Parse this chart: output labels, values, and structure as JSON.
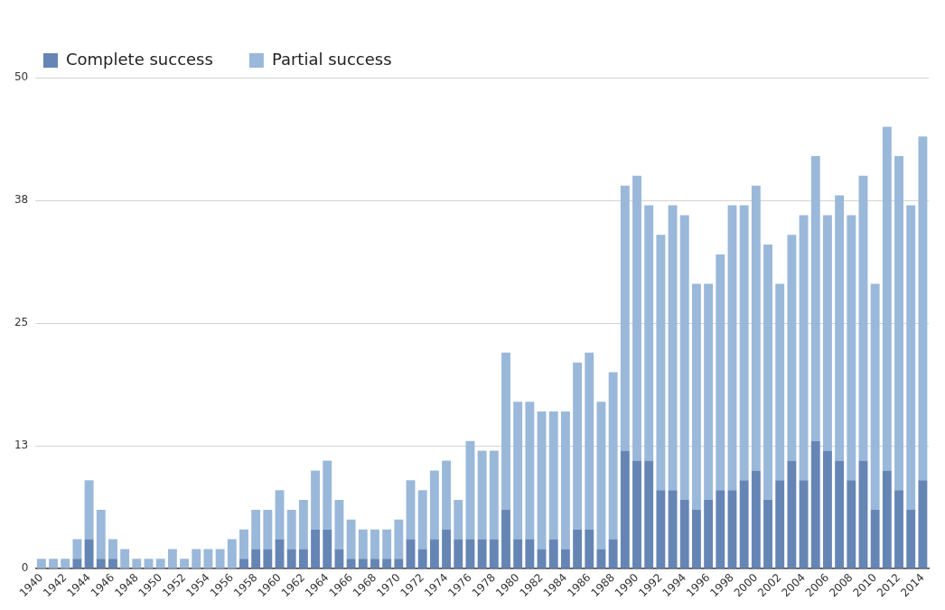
{
  "chart_data": {
    "type": "bar",
    "stacked": true,
    "grid": "y",
    "legend": "top left",
    "categories": [
      "1940",
      null,
      "1942",
      null,
      "1944",
      null,
      "1946",
      null,
      "1948",
      null,
      "1950",
      null,
      "1952",
      null,
      "1954",
      null,
      "1956",
      null,
      "1958",
      null,
      "1960",
      null,
      "1962",
      null,
      "1964",
      null,
      "1966",
      null,
      "1968",
      null,
      "1970",
      null,
      "1972",
      null,
      "1974",
      null,
      "1976",
      null,
      "1978",
      null,
      "1980",
      null,
      "1982",
      null,
      "1984",
      null,
      "1986",
      null,
      "1988",
      null,
      "1990",
      null,
      "1992",
      null,
      "1994",
      null,
      "1996",
      null,
      "1998",
      null,
      "2000",
      null,
      "2002",
      null,
      "2004",
      null,
      "2006",
      null,
      "2008",
      null,
      "2010",
      null,
      "2012",
      null,
      "2014"
    ],
    "ylim": [
      0,
      50
    ],
    "yticks": [
      0,
      {
        "value": 12.5,
        "label": "13"
      },
      25,
      {
        "value": 37.5,
        "label": "38"
      },
      50
    ],
    "series": [
      {
        "name": "Complete success",
        "color": "#6585b5",
        "values": [
          0,
          0,
          0,
          1,
          3,
          1,
          1,
          0,
          0,
          0,
          0,
          0,
          0,
          0,
          0,
          0,
          0,
          1,
          2,
          2,
          3,
          2,
          2,
          4,
          4,
          2,
          1,
          1,
          1,
          1,
          1,
          3,
          2,
          3,
          4,
          3,
          3,
          3,
          3,
          6,
          3,
          3,
          2,
          3,
          2,
          4,
          4,
          2,
          3,
          12,
          11,
          11,
          8,
          8,
          7,
          6,
          7,
          8,
          8,
          9,
          10,
          7,
          9,
          11,
          9,
          13,
          12,
          11,
          9,
          11,
          6,
          10,
          8,
          6,
          9
        ]
      },
      {
        "name": "Partial success",
        "color": "#9ab8d9",
        "values": [
          1,
          1,
          1,
          2,
          6,
          5,
          2,
          2,
          1,
          1,
          1,
          2,
          1,
          2,
          2,
          2,
          3,
          3,
          4,
          4,
          5,
          4,
          5,
          6,
          7,
          5,
          4,
          3,
          3,
          3,
          4,
          6,
          6,
          7,
          7,
          4,
          10,
          9,
          9,
          16,
          14,
          14,
          14,
          13,
          14,
          17,
          18,
          15,
          17,
          27,
          29,
          26,
          26,
          29,
          29,
          23,
          22,
          24,
          29,
          28,
          29,
          26,
          20,
          23,
          27,
          29,
          24,
          27,
          27,
          29,
          23,
          35,
          34,
          31,
          35
        ]
      }
    ]
  }
}
